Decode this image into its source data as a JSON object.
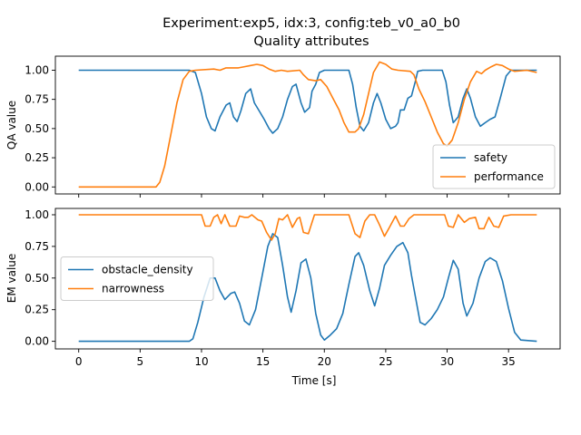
{
  "title_line1": "Experiment:exp5, idx:3, config:teb_v0_a0_b0",
  "title_line2": "Quality attributes",
  "colors": {
    "blue": "#1f77b4",
    "orange": "#ff7f0e"
  },
  "chart_data": [
    {
      "type": "line",
      "ylabel": "QA value",
      "xlim": [
        -1.9,
        39.2
      ],
      "ylim": [
        -0.06,
        1.12
      ],
      "yticks": [
        0.0,
        0.25,
        0.5,
        0.75,
        1.0
      ],
      "ytick_labels": [
        "0.00",
        "0.25",
        "0.50",
        "0.75",
        "1.00"
      ],
      "xticks": [
        0,
        5,
        10,
        15,
        20,
        25,
        30,
        35
      ],
      "xtick_labels": [],
      "legend": "lower-right",
      "series": [
        {
          "name": "safety",
          "color": "blue",
          "points": [
            [
              0,
              1.0
            ],
            [
              9.0,
              1.0
            ],
            [
              9.5,
              0.98
            ],
            [
              10.0,
              0.8
            ],
            [
              10.4,
              0.6
            ],
            [
              10.8,
              0.5
            ],
            [
              11.1,
              0.48
            ],
            [
              11.5,
              0.6
            ],
            [
              12.0,
              0.7
            ],
            [
              12.3,
              0.72
            ],
            [
              12.6,
              0.6
            ],
            [
              12.9,
              0.56
            ],
            [
              13.2,
              0.65
            ],
            [
              13.6,
              0.8
            ],
            [
              14.0,
              0.84
            ],
            [
              14.3,
              0.72
            ],
            [
              14.7,
              0.65
            ],
            [
              15.1,
              0.58
            ],
            [
              15.5,
              0.5
            ],
            [
              15.8,
              0.46
            ],
            [
              16.2,
              0.5
            ],
            [
              16.6,
              0.6
            ],
            [
              17.0,
              0.75
            ],
            [
              17.4,
              0.86
            ],
            [
              17.7,
              0.88
            ],
            [
              18.1,
              0.72
            ],
            [
              18.4,
              0.64
            ],
            [
              18.8,
              0.68
            ],
            [
              19.0,
              0.82
            ],
            [
              19.3,
              0.88
            ],
            [
              19.6,
              0.98
            ],
            [
              20.0,
              1.0
            ],
            [
              22.0,
              1.0
            ],
            [
              22.3,
              0.88
            ],
            [
              22.6,
              0.68
            ],
            [
              22.9,
              0.52
            ],
            [
              23.2,
              0.48
            ],
            [
              23.6,
              0.55
            ],
            [
              24.0,
              0.72
            ],
            [
              24.3,
              0.8
            ],
            [
              24.6,
              0.72
            ],
            [
              25.0,
              0.58
            ],
            [
              25.4,
              0.5
            ],
            [
              25.8,
              0.52
            ],
            [
              26.0,
              0.55
            ],
            [
              26.2,
              0.66
            ],
            [
              26.5,
              0.66
            ],
            [
              26.8,
              0.76
            ],
            [
              27.1,
              0.78
            ],
            [
              27.4,
              0.9
            ],
            [
              27.6,
              0.99
            ],
            [
              28.0,
              1.0
            ],
            [
              29.6,
              1.0
            ],
            [
              29.9,
              0.9
            ],
            [
              30.2,
              0.7
            ],
            [
              30.5,
              0.55
            ],
            [
              30.9,
              0.6
            ],
            [
              31.3,
              0.76
            ],
            [
              31.6,
              0.84
            ],
            [
              31.9,
              0.76
            ],
            [
              32.3,
              0.6
            ],
            [
              32.7,
              0.52
            ],
            [
              33.1,
              0.55
            ],
            [
              33.5,
              0.58
            ],
            [
              33.9,
              0.6
            ],
            [
              34.3,
              0.75
            ],
            [
              34.8,
              0.95
            ],
            [
              35.2,
              1.0
            ],
            [
              37.3,
              1.0
            ]
          ]
        },
        {
          "name": "performance",
          "color": "orange",
          "points": [
            [
              0,
              0.0
            ],
            [
              6.3,
              0.0
            ],
            [
              6.6,
              0.04
            ],
            [
              7.0,
              0.18
            ],
            [
              7.5,
              0.45
            ],
            [
              8.0,
              0.72
            ],
            [
              8.5,
              0.92
            ],
            [
              9.0,
              0.99
            ],
            [
              9.5,
              1.0
            ],
            [
              11.0,
              1.01
            ],
            [
              11.5,
              1.0
            ],
            [
              12.0,
              1.02
            ],
            [
              13.0,
              1.02
            ],
            [
              13.5,
              1.03
            ],
            [
              14.0,
              1.04
            ],
            [
              14.5,
              1.05
            ],
            [
              15.0,
              1.04
            ],
            [
              15.5,
              1.01
            ],
            [
              16.0,
              0.99
            ],
            [
              16.5,
              1.0
            ],
            [
              17.0,
              0.99
            ],
            [
              18.0,
              1.0
            ],
            [
              18.3,
              0.96
            ],
            [
              18.7,
              0.92
            ],
            [
              19.3,
              0.91
            ],
            [
              19.7,
              0.92
            ],
            [
              20.2,
              0.86
            ],
            [
              20.7,
              0.76
            ],
            [
              21.2,
              0.66
            ],
            [
              21.6,
              0.55
            ],
            [
              22.0,
              0.47
            ],
            [
              22.5,
              0.47
            ],
            [
              22.8,
              0.5
            ],
            [
              23.2,
              0.62
            ],
            [
              23.6,
              0.8
            ],
            [
              24.0,
              0.98
            ],
            [
              24.5,
              1.07
            ],
            [
              25.0,
              1.05
            ],
            [
              25.5,
              1.01
            ],
            [
              26.0,
              1.0
            ],
            [
              27.0,
              0.99
            ],
            [
              27.3,
              0.96
            ],
            [
              27.7,
              0.84
            ],
            [
              28.2,
              0.73
            ],
            [
              28.7,
              0.6
            ],
            [
              29.2,
              0.47
            ],
            [
              29.7,
              0.37
            ],
            [
              30.0,
              0.35
            ],
            [
              30.4,
              0.4
            ],
            [
              30.9,
              0.55
            ],
            [
              31.4,
              0.75
            ],
            [
              31.9,
              0.9
            ],
            [
              32.4,
              0.99
            ],
            [
              32.8,
              0.97
            ],
            [
              33.1,
              1.0
            ],
            [
              33.6,
              1.03
            ],
            [
              34.0,
              1.05
            ],
            [
              34.5,
              1.04
            ],
            [
              35.0,
              1.01
            ],
            [
              35.5,
              0.99
            ],
            [
              36.5,
              1.0
            ],
            [
              37.3,
              0.98
            ]
          ]
        }
      ]
    },
    {
      "type": "line",
      "ylabel": "EM value",
      "xlabel": "Time [s]",
      "xlim": [
        -1.9,
        39.2
      ],
      "ylim": [
        -0.06,
        1.05
      ],
      "yticks": [
        0.0,
        0.25,
        0.5,
        0.75,
        1.0
      ],
      "ytick_labels": [
        "0.00",
        "0.25",
        "0.50",
        "0.75",
        "1.00"
      ],
      "xticks": [
        0,
        5,
        10,
        15,
        20,
        25,
        30,
        35
      ],
      "xtick_labels": [
        "0",
        "5",
        "10",
        "15",
        "20",
        "25",
        "30",
        "35"
      ],
      "legend": "center-left",
      "series": [
        {
          "name": "obstacle_density",
          "color": "blue",
          "points": [
            [
              0,
              0.0
            ],
            [
              9.0,
              0.0
            ],
            [
              9.3,
              0.02
            ],
            [
              9.7,
              0.15
            ],
            [
              10.2,
              0.35
            ],
            [
              10.7,
              0.5
            ],
            [
              11.1,
              0.5
            ],
            [
              11.5,
              0.4
            ],
            [
              11.9,
              0.33
            ],
            [
              12.4,
              0.38
            ],
            [
              12.7,
              0.39
            ],
            [
              13.1,
              0.3
            ],
            [
              13.5,
              0.16
            ],
            [
              13.9,
              0.13
            ],
            [
              14.4,
              0.25
            ],
            [
              14.9,
              0.5
            ],
            [
              15.4,
              0.75
            ],
            [
              15.8,
              0.85
            ],
            [
              16.2,
              0.82
            ],
            [
              16.6,
              0.6
            ],
            [
              17.0,
              0.35
            ],
            [
              17.3,
              0.23
            ],
            [
              17.7,
              0.4
            ],
            [
              18.1,
              0.62
            ],
            [
              18.5,
              0.65
            ],
            [
              18.9,
              0.5
            ],
            [
              19.3,
              0.22
            ],
            [
              19.7,
              0.05
            ],
            [
              20.0,
              0.01
            ],
            [
              20.5,
              0.05
            ],
            [
              21.0,
              0.1
            ],
            [
              21.5,
              0.22
            ],
            [
              22.0,
              0.45
            ],
            [
              22.5,
              0.67
            ],
            [
              22.8,
              0.7
            ],
            [
              23.2,
              0.6
            ],
            [
              23.7,
              0.4
            ],
            [
              24.1,
              0.28
            ],
            [
              24.5,
              0.42
            ],
            [
              24.9,
              0.6
            ],
            [
              25.4,
              0.68
            ],
            [
              25.9,
              0.75
            ],
            [
              26.4,
              0.78
            ],
            [
              26.8,
              0.7
            ],
            [
              27.1,
              0.52
            ],
            [
              27.4,
              0.36
            ],
            [
              27.8,
              0.15
            ],
            [
              28.2,
              0.13
            ],
            [
              28.7,
              0.18
            ],
            [
              29.2,
              0.25
            ],
            [
              29.7,
              0.35
            ],
            [
              30.1,
              0.5
            ],
            [
              30.5,
              0.64
            ],
            [
              30.9,
              0.57
            ],
            [
              31.3,
              0.3
            ],
            [
              31.6,
              0.2
            ],
            [
              32.1,
              0.3
            ],
            [
              32.6,
              0.5
            ],
            [
              33.1,
              0.63
            ],
            [
              33.5,
              0.66
            ],
            [
              34.0,
              0.63
            ],
            [
              34.5,
              0.48
            ],
            [
              35.0,
              0.26
            ],
            [
              35.5,
              0.07
            ],
            [
              36.0,
              0.01
            ],
            [
              37.3,
              0.0
            ]
          ]
        },
        {
          "name": "narrowness",
          "color": "orange",
          "points": [
            [
              0,
              1.0
            ],
            [
              10.0,
              1.0
            ],
            [
              10.3,
              0.91
            ],
            [
              10.7,
              0.91
            ],
            [
              11.0,
              0.98
            ],
            [
              11.3,
              1.0
            ],
            [
              11.6,
              0.93
            ],
            [
              11.9,
              1.0
            ],
            [
              12.3,
              0.91
            ],
            [
              12.8,
              0.91
            ],
            [
              13.1,
              0.99
            ],
            [
              13.5,
              0.98
            ],
            [
              13.8,
              0.98
            ],
            [
              14.1,
              1.0
            ],
            [
              14.6,
              0.96
            ],
            [
              14.9,
              0.95
            ],
            [
              15.3,
              0.86
            ],
            [
              15.7,
              0.8
            ],
            [
              16.0,
              0.85
            ],
            [
              16.3,
              0.97
            ],
            [
              16.6,
              0.96
            ],
            [
              17.0,
              1.0
            ],
            [
              17.4,
              0.9
            ],
            [
              17.8,
              0.97
            ],
            [
              18.0,
              0.98
            ],
            [
              18.3,
              0.86
            ],
            [
              18.7,
              0.85
            ],
            [
              19.2,
              1.0
            ],
            [
              22.0,
              1.0
            ],
            [
              22.5,
              0.85
            ],
            [
              22.9,
              0.82
            ],
            [
              23.3,
              0.95
            ],
            [
              23.7,
              1.0
            ],
            [
              24.1,
              1.0
            ],
            [
              24.5,
              0.92
            ],
            [
              24.9,
              0.83
            ],
            [
              25.3,
              0.9
            ],
            [
              25.8,
              0.99
            ],
            [
              26.2,
              0.91
            ],
            [
              26.5,
              0.91
            ],
            [
              26.9,
              0.97
            ],
            [
              27.3,
              1.0
            ],
            [
              29.8,
              1.0
            ],
            [
              30.1,
              0.91
            ],
            [
              30.5,
              0.9
            ],
            [
              30.9,
              1.0
            ],
            [
              31.4,
              0.94
            ],
            [
              31.8,
              0.97
            ],
            [
              32.3,
              0.98
            ],
            [
              32.6,
              0.89
            ],
            [
              33.0,
              0.89
            ],
            [
              33.4,
              0.98
            ],
            [
              33.8,
              0.91
            ],
            [
              34.2,
              0.9
            ],
            [
              34.6,
              0.99
            ],
            [
              35.2,
              1.0
            ],
            [
              37.3,
              1.0
            ]
          ]
        }
      ]
    }
  ]
}
